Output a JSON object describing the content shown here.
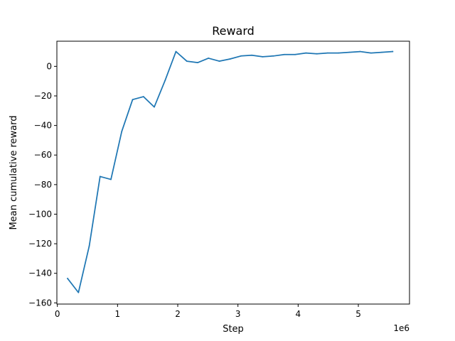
{
  "chart_data": {
    "type": "line",
    "title": "Reward",
    "xlabel": "Step",
    "ylabel": "Mean cumulative reward",
    "x_offset_label": "1e6",
    "xlim": [
      -0.008,
      5.85
    ],
    "ylim": [
      -160.8,
      17
    ],
    "x_ticks": [
      0,
      1,
      2,
      3,
      4,
      5
    ],
    "x_tick_labels": [
      "0",
      "1",
      "2",
      "3",
      "4",
      "5"
    ],
    "y_ticks": [
      0,
      -20,
      -40,
      -60,
      -80,
      -100,
      -120,
      -140,
      -160
    ],
    "y_tick_labels": [
      "0",
      "−20",
      "−40",
      "−60",
      "−80",
      "−100",
      "−120",
      "−140",
      "−160"
    ],
    "grid": false,
    "series": [
      {
        "color": "#1f77b4",
        "x": [
          0.17,
          0.35,
          0.53,
          0.71,
          0.89,
          1.07,
          1.25,
          1.43,
          1.61,
          1.79,
          1.97,
          2.15,
          2.33,
          2.51,
          2.69,
          2.87,
          3.05,
          3.23,
          3.41,
          3.59,
          3.77,
          3.95,
          4.13,
          4.31,
          4.49,
          4.67,
          4.85,
          5.03,
          5.21,
          5.39,
          5.57
        ],
        "y": [
          -143.5,
          -153.0,
          -121.5,
          -74.5,
          -76.5,
          -44.0,
          -22.5,
          -20.5,
          -27.5,
          -9.5,
          10.0,
          3.5,
          2.5,
          5.5,
          3.5,
          5.0,
          7.0,
          7.5,
          6.5,
          7.0,
          8.0,
          8.0,
          9.0,
          8.5,
          9.0,
          9.0,
          9.5,
          10.0,
          9.0,
          9.5,
          10.0
        ]
      }
    ]
  }
}
